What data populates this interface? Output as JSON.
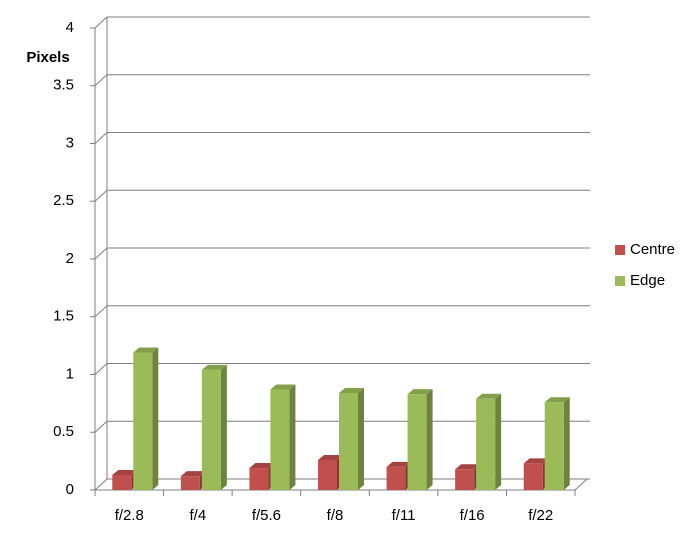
{
  "chart_data": {
    "type": "bar",
    "y_label": "Pixels",
    "categories": [
      "f/2.8",
      "f/4",
      "f/5.6",
      "f/8",
      "f/11",
      "f/16",
      "f/22"
    ],
    "series": [
      {
        "name": "Centre",
        "color": "#c0504d",
        "values": [
          0.13,
          0.12,
          0.19,
          0.26,
          0.2,
          0.18,
          0.23
        ]
      },
      {
        "name": "Edge",
        "color": "#9bbb59",
        "values": [
          1.19,
          1.04,
          0.87,
          0.84,
          0.83,
          0.79,
          0.76
        ]
      }
    ],
    "ylim": [
      0,
      4
    ],
    "yticks": [
      0,
      0.5,
      1,
      1.5,
      2,
      2.5,
      3,
      3.5,
      4
    ],
    "grid": true
  }
}
